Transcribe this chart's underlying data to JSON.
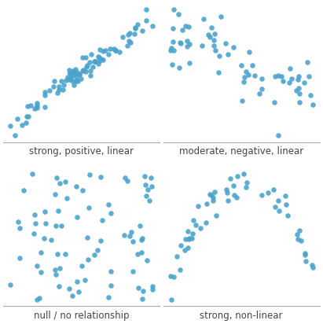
{
  "dot_color": "#4BA3CC",
  "dot_size": 22,
  "alpha": 0.9,
  "labels": [
    "strong, positive, linear",
    "moderate, negative, linear",
    "null / no relationship",
    "strong, non-linear"
  ],
  "label_fontsize": 8.5,
  "background_color": "#ffffff",
  "seed": 7,
  "n1": 90,
  "n2": 65,
  "n3": 80,
  "n4": 55
}
